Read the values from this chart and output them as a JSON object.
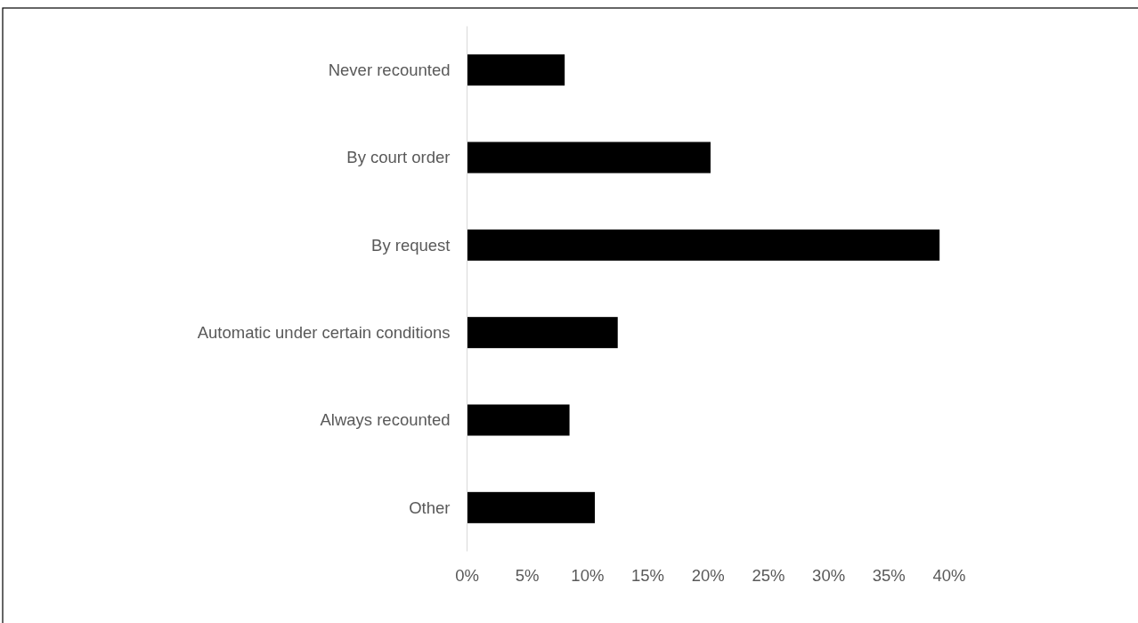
{
  "chart_data": {
    "type": "bar",
    "orientation": "horizontal",
    "categories": [
      "Never recounted",
      "By court order",
      "By request",
      "Automatic under certain conditions",
      "Always recounted",
      "Other"
    ],
    "values": [
      8.1,
      20.2,
      39.2,
      12.5,
      8.5,
      10.6
    ],
    "color": "#000000",
    "xlim": [
      0,
      40
    ],
    "xticks": [
      {
        "value": 0,
        "label": "0%"
      },
      {
        "value": 5,
        "label": "5%"
      },
      {
        "value": 10,
        "label": "10%"
      },
      {
        "value": 15,
        "label": "15%"
      },
      {
        "value": 20,
        "label": "20%"
      },
      {
        "value": 25,
        "label": "25%"
      },
      {
        "value": 30,
        "label": "30%"
      },
      {
        "value": 35,
        "label": "35%"
      },
      {
        "value": 40,
        "label": "40%"
      }
    ]
  }
}
